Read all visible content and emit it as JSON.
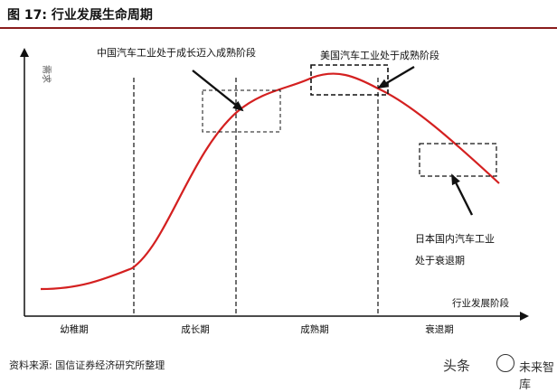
{
  "figure": {
    "title": "图 17:  行业发展生命周期",
    "source": "资料来源:  国信证券经济研究所整理"
  },
  "diagram": {
    "y_axis_label": "需求",
    "x_axis_label": "行业发展阶段",
    "stages": [
      "幼稚期",
      "成长期",
      "成熟期",
      "衰退期"
    ],
    "annotations": {
      "china": "中国汽车工业处于成长迈入成熟阶段",
      "usa": "美国汽车工业处于成熟阶段",
      "japan_line1": "日本国内汽车工业",
      "japan_line2": "处于衰退期"
    },
    "curve_color": "#d42020"
  },
  "watermark": {
    "text_a": "头条",
    "text_b": "未来智库"
  }
}
